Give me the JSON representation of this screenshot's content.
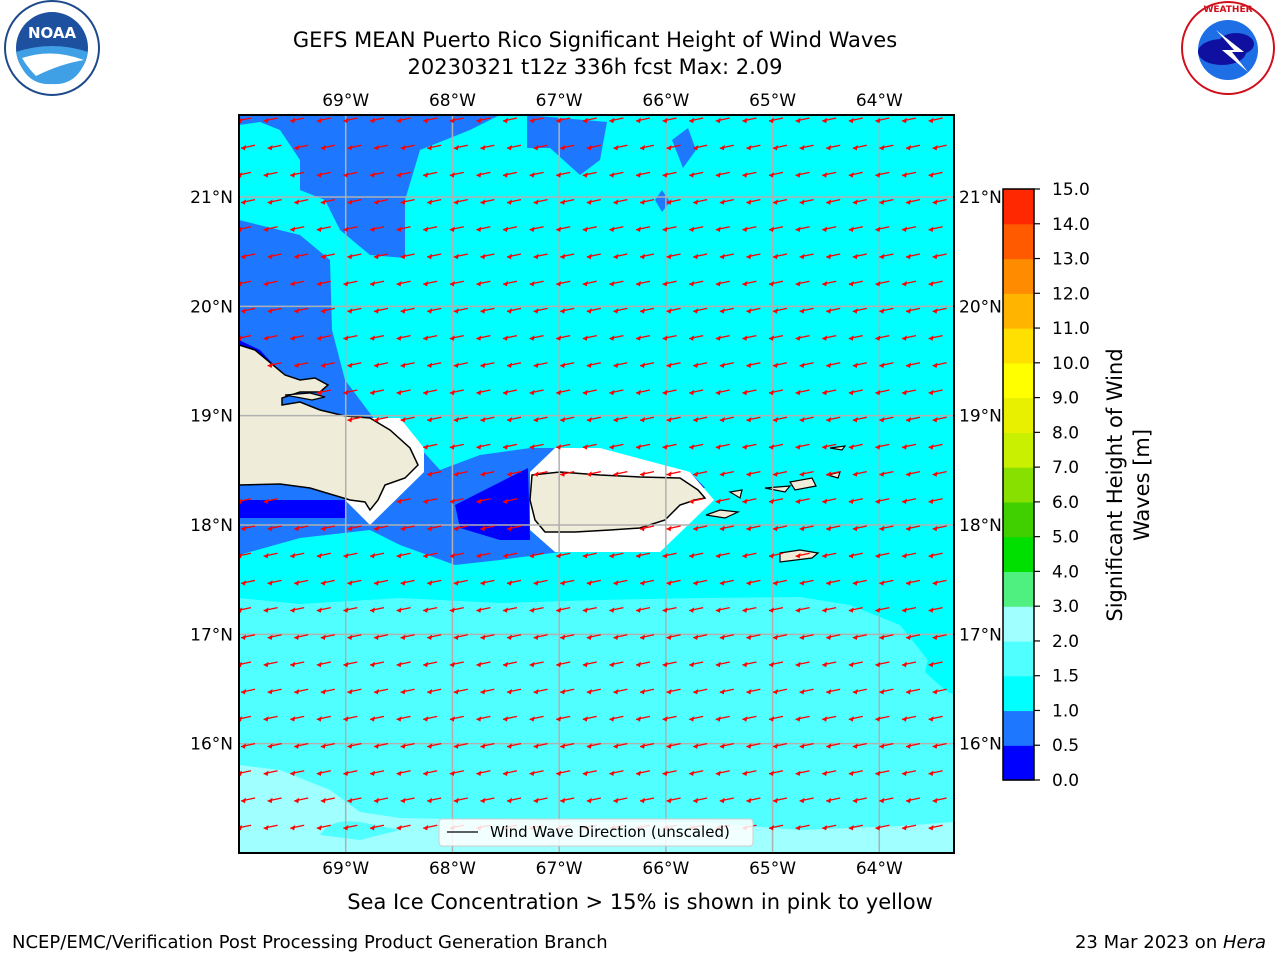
{
  "title_line1": "GEFS MEAN Puerto Rico Significant Height of Wind Waves",
  "title_line2": "20230321 t12z 336h fcst   Max: 2.09",
  "logos": {
    "left": "noaa-logo",
    "right": "national-weather-service-logo",
    "left_text": "NOAA",
    "left_ring_text": "NATIONAL OCEANIC AND ATMOSPHERIC ADMINISTRATION · U.S. DEPARTMENT OF COMMERCE",
    "right_ring_text": "NATIONAL WEATHER SERVICE"
  },
  "map": {
    "lon_labels": [
      "69°W",
      "68°W",
      "67°W",
      "66°W",
      "65°W",
      "64°W"
    ],
    "lat_labels": [
      "21°N",
      "20°N",
      "19°N",
      "18°N",
      "17°N",
      "16°N"
    ],
    "lon_range": [
      -70.0,
      -63.3
    ],
    "lat_range": [
      15.0,
      21.75
    ],
    "grid": true,
    "colors": {
      "band_0_0_5": "#0000ff",
      "band_0_5_1_0": "#1e78ff",
      "band_1_0_1_5": "#00ffff",
      "band_1_5_2_0": "#50ffff",
      "band_2_0_3_0": "#a0ffff",
      "land": "#efedd9",
      "arrow": "#ff0000"
    },
    "arrow_direction": "toward west-southwest"
  },
  "legend": {
    "label": "Wind Wave Direction (unscaled)"
  },
  "colorbar": {
    "label": "Significant Height of Wind Waves [m]",
    "label_line1": "Significant Height of Wind",
    "label_line2": "Waves [m]",
    "ticks": [
      "15.0",
      "14.0",
      "13.0",
      "12.0",
      "11.0",
      "10.0",
      "9.0",
      "8.0",
      "7.0",
      "6.0",
      "5.0",
      "4.0",
      "3.0",
      "2.0",
      "1.5",
      "1.0",
      "0.5",
      "0.0"
    ],
    "colors_bottom_to_top": [
      "#0000ff",
      "#1e78ff",
      "#00ffff",
      "#50ffff",
      "#a0ffff",
      "#50f080",
      "#00e000",
      "#40d000",
      "#88e000",
      "#c8f000",
      "#e8f000",
      "#ffff00",
      "#ffe000",
      "#ffb400",
      "#ff8c00",
      "#ff5a00",
      "#ff2800",
      "#ff0000"
    ]
  },
  "note": "Sea Ice Concentration > 15% is shown in pink to yellow",
  "footer": {
    "left": "NCEP/EMC/Verification Post Processing Product Generation Branch",
    "date": "23 Mar 2023 on ",
    "machine": "Hera"
  }
}
